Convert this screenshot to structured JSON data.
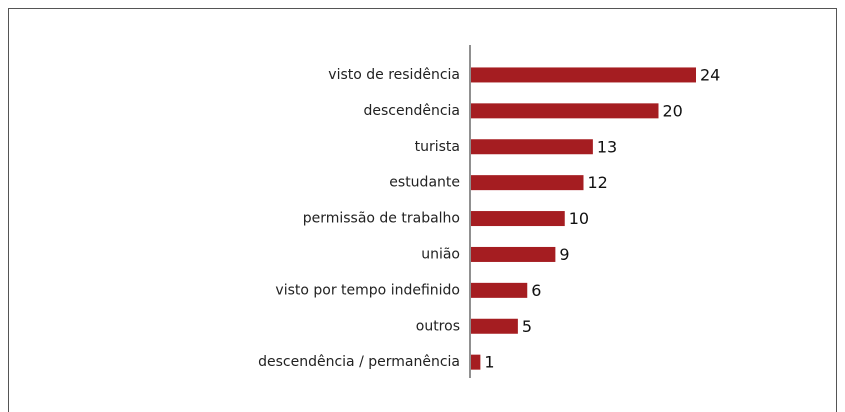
{
  "chart_data": {
    "type": "bar",
    "orientation": "horizontal",
    "categories": [
      "visto de residência",
      "descendência",
      "turista",
      "estudante",
      "permissão de trabalho",
      "união",
      "visto por tempo indefinido",
      "outros",
      "descendência / permanência"
    ],
    "values": [
      24,
      20,
      13,
      12,
      10,
      9,
      6,
      5,
      1
    ],
    "color": "#a51d21"
  }
}
